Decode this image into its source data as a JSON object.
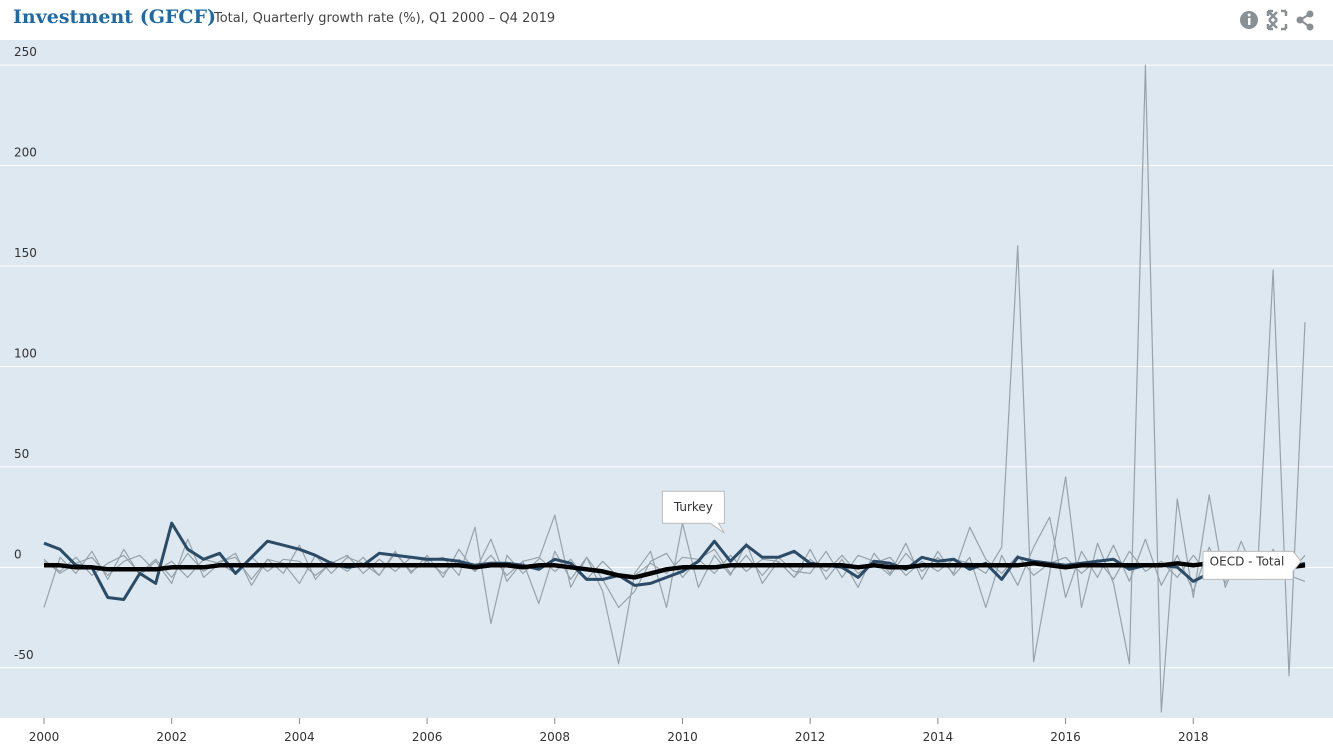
{
  "header": {
    "title": "Investment (GFCF)",
    "subtitle": "Total, Quarterly growth rate (%), Q1 2000 – Q4 2019"
  },
  "chart_data": {
    "type": "line",
    "x": [
      2000,
      2000.25,
      2000.5,
      2000.75,
      2001,
      2001.25,
      2001.5,
      2001.75,
      2002,
      2002.25,
      2002.5,
      2002.75,
      2003,
      2003.25,
      2003.5,
      2003.75,
      2004,
      2004.25,
      2004.5,
      2004.75,
      2005,
      2005.25,
      2005.5,
      2005.75,
      2006,
      2006.25,
      2006.5,
      2006.75,
      2007,
      2007.25,
      2007.5,
      2007.75,
      2008,
      2008.25,
      2008.5,
      2008.75,
      2009,
      2009.25,
      2009.5,
      2009.75,
      2010,
      2010.25,
      2010.5,
      2010.75,
      2011,
      2011.25,
      2011.5,
      2011.75,
      2012,
      2012.25,
      2012.5,
      2012.75,
      2013,
      2013.25,
      2013.5,
      2013.75,
      2014,
      2014.25,
      2014.5,
      2014.75,
      2015,
      2015.25,
      2015.5,
      2015.75,
      2016,
      2016.25,
      2016.5,
      2016.75,
      2017,
      2017.25,
      2017.5,
      2017.75,
      2018,
      2018.25,
      2018.5,
      2018.75,
      2019,
      2019.25,
      2019.5,
      2019.75
    ],
    "xlim": [
      2000,
      2019.75
    ],
    "xticks": [
      2000,
      2002,
      2004,
      2006,
      2008,
      2010,
      2012,
      2014,
      2016,
      2018
    ],
    "ylim": [
      -75,
      262.5
    ],
    "yticks": [
      -50,
      0,
      50,
      100,
      150,
      200,
      250
    ],
    "grid": true,
    "series": [
      {
        "color": "#97a3ab",
        "values": [
          -20,
          5,
          -3,
          8,
          -6,
          9,
          -4,
          3,
          -8,
          14,
          -5,
          2,
          7,
          -9,
          4,
          -3,
          11,
          -6,
          3,
          -2,
          5,
          -4,
          8,
          -3,
          6,
          -5,
          9,
          -2,
          14,
          -7,
          3,
          -18,
          8,
          -6,
          5,
          -12,
          -48,
          -3,
          8,
          -20,
          22,
          -10,
          6,
          -4,
          12,
          -8,
          3,
          -5,
          9,
          -6,
          4,
          -10,
          7,
          -3,
          12,
          -6,
          8,
          -4,
          5,
          -20,
          6,
          -9,
          10,
          25,
          -15,
          8,
          -5,
          11,
          -7,
          14,
          -9,
          6,
          -12,
          10,
          -8,
          13,
          -6,
          9,
          -4,
          -7
        ]
      },
      {
        "color": "#97a3ab",
        "values": [
          3,
          -2,
          5,
          -4,
          2,
          6,
          -3,
          4,
          -5,
          7,
          -2,
          3,
          5,
          -6,
          4,
          2,
          -8,
          6,
          -3,
          5,
          2,
          -4,
          7,
          -2,
          3,
          5,
          -4,
          20,
          -28,
          6,
          -3,
          4,
          26,
          -10,
          5,
          -6,
          -20,
          -12,
          3,
          7,
          -5,
          4,
          9,
          -3,
          6,
          -4,
          5,
          -2,
          -3,
          8,
          -5,
          6,
          3,
          -4,
          7,
          -2,
          5,
          -3,
          20,
          4,
          -3,
          6,
          -4,
          2,
          5,
          -3,
          4,
          -6,
          8,
          -2,
          3,
          -5,
          6,
          -4,
          5,
          3,
          -2,
          4,
          -3,
          6
        ]
      },
      {
        "color": "#97a3ab",
        "values": [
          4,
          -3,
          2,
          5,
          -4,
          3,
          6,
          -2,
          3,
          -5,
          4,
          2,
          -3,
          5,
          -2,
          4,
          3,
          -4,
          2,
          6,
          -3,
          4,
          -2,
          5,
          3,
          -3,
          4,
          -2,
          6,
          -4,
          3,
          5,
          -2,
          4,
          -6,
          3,
          -5,
          -4,
          2,
          -3,
          5,
          4,
          -3,
          6,
          -2,
          4,
          3,
          -5,
          4,
          -2,
          6,
          -3,
          2,
          5,
          -4,
          3,
          -2,
          4,
          2,
          -3,
          10,
          160,
          -47,
          -3,
          45,
          -20,
          12,
          -8,
          -48,
          250,
          -72,
          34,
          -15,
          36,
          -10,
          8,
          -6,
          148,
          -54,
          122
        ]
      },
      {
        "name": "Turkey",
        "color": "#2b4b66",
        "values": [
          12,
          9,
          1,
          0,
          -15,
          -16,
          -3,
          -8,
          22,
          9,
          4,
          7,
          -3,
          5,
          13,
          11,
          9,
          6,
          2,
          0,
          1,
          7,
          6,
          5,
          4,
          4,
          3,
          1,
          2,
          2,
          1,
          -1,
          4,
          2,
          -6,
          -6,
          -4,
          -9,
          -8,
          -5,
          -2,
          3,
          13,
          3,
          11,
          5,
          5,
          8,
          2,
          1,
          0,
          -5,
          3,
          2,
          -1,
          5,
          3,
          4,
          -1,
          2,
          -6,
          5,
          3,
          2,
          1,
          2,
          3,
          4,
          -1,
          1,
          1,
          0,
          -7,
          -3,
          -1,
          -2,
          -2,
          1,
          0,
          2
        ]
      },
      {
        "name": "OECD - Total",
        "color": "#000000",
        "values": [
          1,
          1,
          0,
          0,
          -1,
          -1,
          -1,
          -1,
          0,
          0,
          0,
          1,
          1,
          1,
          1,
          1,
          1,
          1,
          1,
          1,
          1,
          1,
          1,
          1,
          1,
          1,
          1,
          0,
          1,
          1,
          0,
          1,
          1,
          0,
          -1,
          -2,
          -4,
          -5,
          -3,
          -1,
          0,
          0,
          0,
          1,
          1,
          1,
          1,
          1,
          1,
          1,
          1,
          0,
          1,
          0,
          0,
          1,
          1,
          1,
          1,
          1,
          1,
          1,
          2,
          1,
          0,
          1,
          1,
          1,
          1,
          1,
          1,
          2,
          1,
          2,
          1,
          1,
          1,
          0,
          0,
          1
        ]
      }
    ]
  }
}
